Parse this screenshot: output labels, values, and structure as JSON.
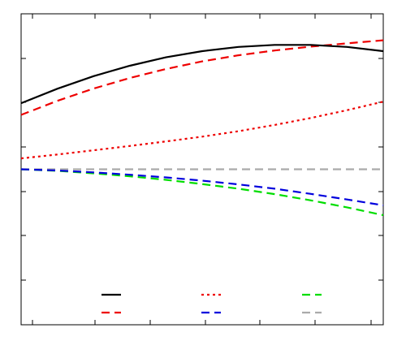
{
  "chart_data": {
    "type": "line",
    "title": "",
    "xlabel": "",
    "ylabel": "",
    "xlim": [
      0,
      1
    ],
    "ylim": [
      -1,
      1
    ],
    "grid": false,
    "legend_position": "bottom-center",
    "x": [
      0,
      0.1,
      0.2,
      0.3,
      0.4,
      0.5,
      0.6,
      0.7,
      0.8,
      0.9,
      1.0
    ],
    "series": [
      {
        "color": "#000000",
        "dash": "solid",
        "values": [
          0.425,
          0.518,
          0.599,
          0.666,
          0.72,
          0.76,
          0.787,
          0.8,
          0.8,
          0.787,
          0.76
        ]
      },
      {
        "color": "#ee0000",
        "dash": "dashed",
        "values": [
          0.35,
          0.44,
          0.519,
          0.587,
          0.645,
          0.694,
          0.733,
          0.764,
          0.789,
          0.81,
          0.83
        ]
      },
      {
        "color": "#ee0000",
        "dash": "dotted",
        "values": [
          0.07,
          0.095,
          0.122,
          0.15,
          0.179,
          0.21,
          0.245,
          0.285,
          0.33,
          0.38,
          0.435
        ]
      },
      {
        "color": "#0000dd",
        "dash": "dashed",
        "values": [
          0.0,
          -0.008,
          -0.02,
          -0.035,
          -0.052,
          -0.073,
          -0.097,
          -0.125,
          -0.158,
          -0.194,
          -0.232
        ]
      },
      {
        "color": "#00dd00",
        "dash": "dashed",
        "values": [
          0.0,
          -0.01,
          -0.026,
          -0.045,
          -0.068,
          -0.095,
          -0.125,
          -0.16,
          -0.2,
          -0.245,
          -0.295
        ]
      },
      {
        "color": "#aaaaaa",
        "dash": "dashed",
        "values": [
          0,
          0,
          0,
          0,
          0,
          0,
          0,
          0,
          0,
          0,
          0
        ]
      }
    ],
    "legend": [
      {
        "series": 0
      },
      {
        "series": 2
      },
      {
        "series": 4
      },
      {
        "series": 1
      },
      {
        "series": 3
      },
      {
        "series": 5
      }
    ]
  }
}
